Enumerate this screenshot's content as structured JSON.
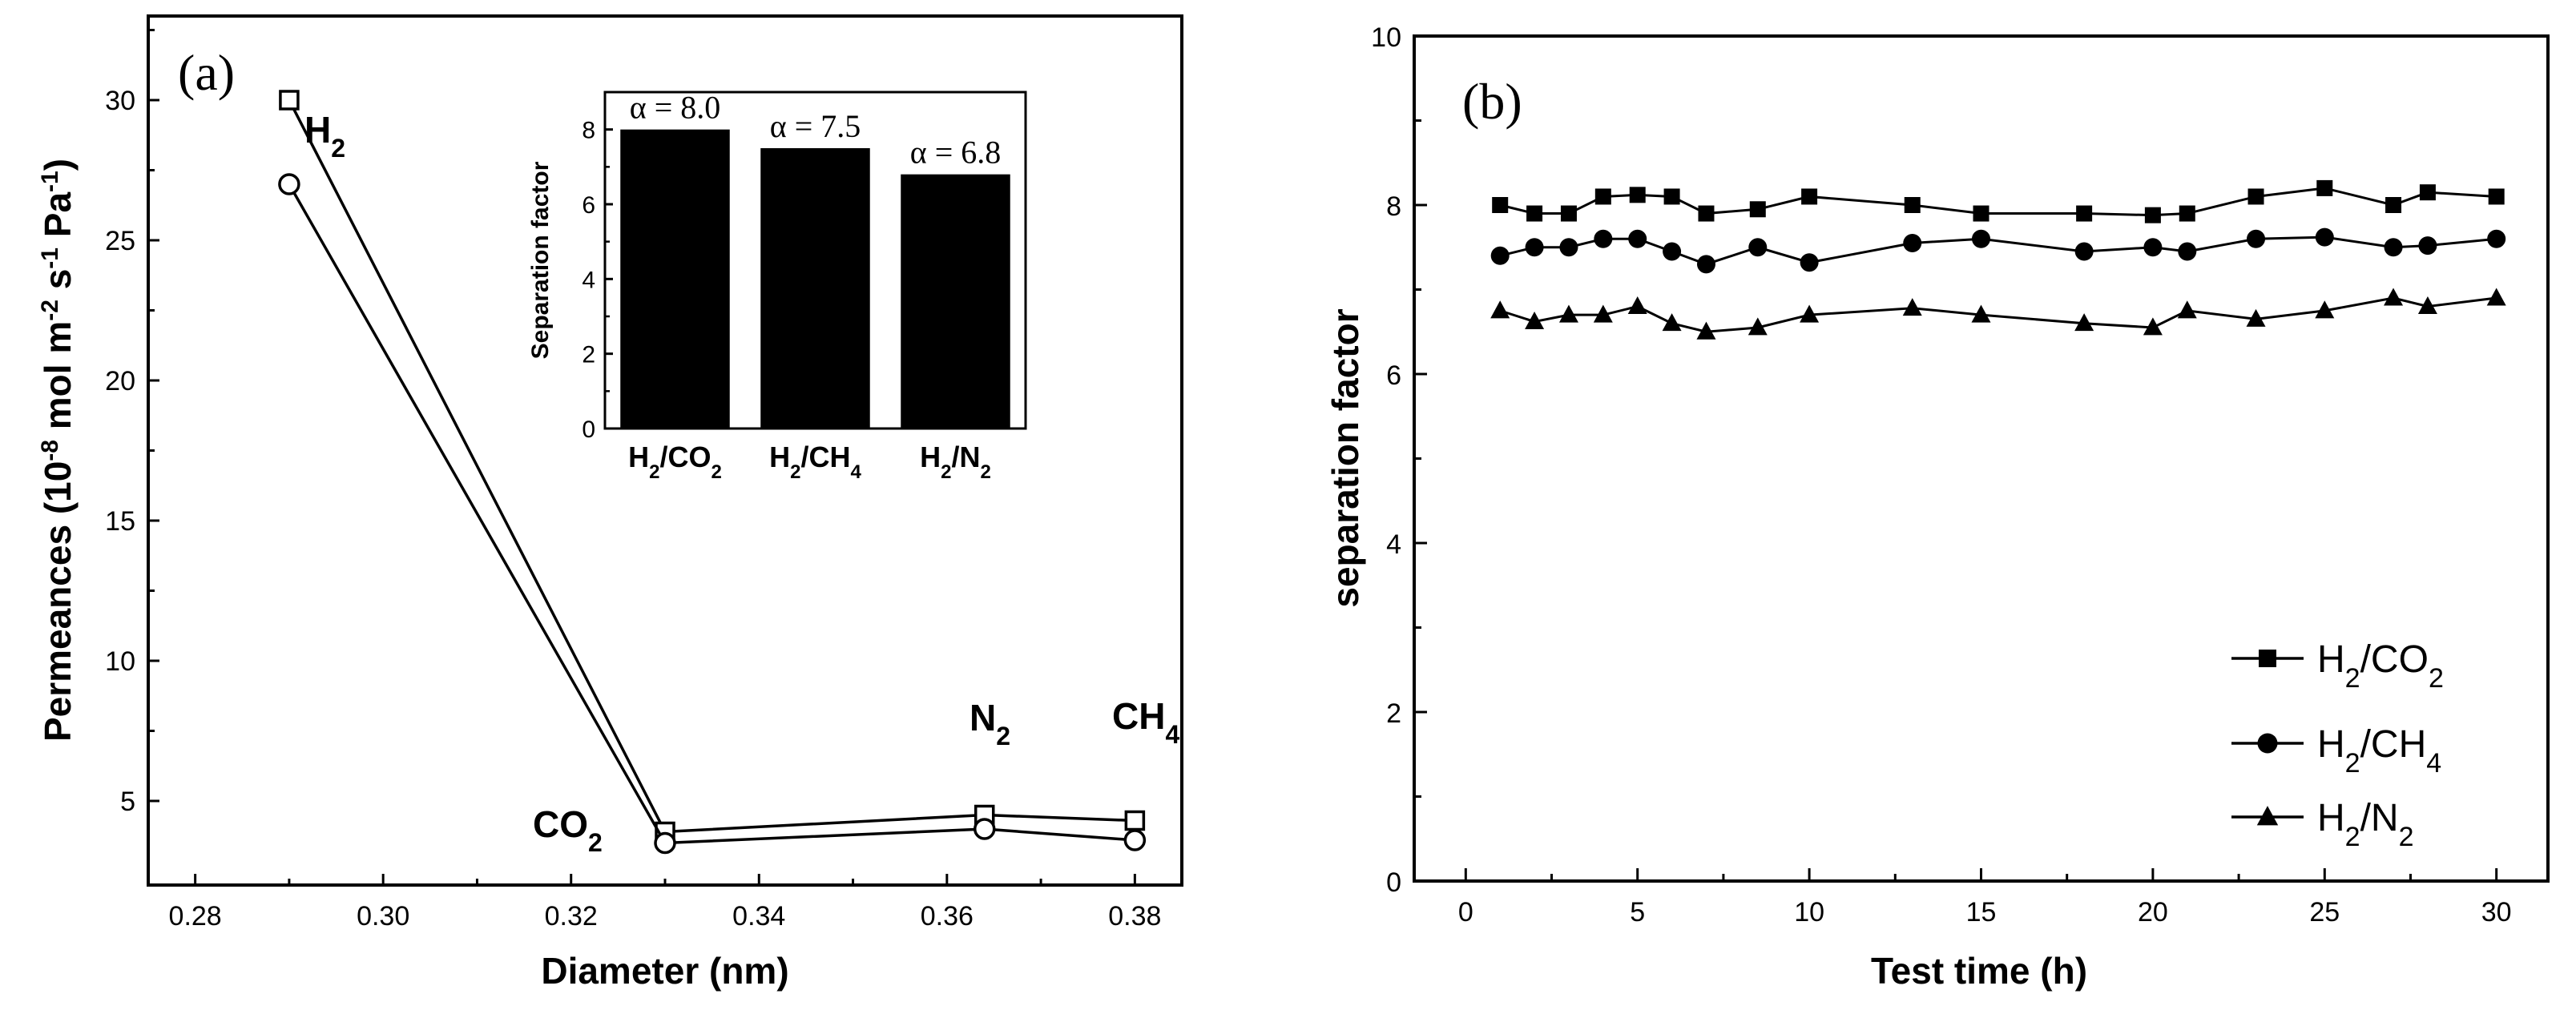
{
  "chart_data": [
    {
      "panel": "(a)",
      "type": "line",
      "xlabel": "Diameter (nm)",
      "ylabel": "Permeances (10^-8 mol m^-2 s^-1 Pa^-1)",
      "xlim": [
        0.275,
        0.385
      ],
      "ylim": [
        2,
        33
      ],
      "xticks": [
        0.28,
        0.3,
        0.32,
        0.34,
        0.36,
        0.38
      ],
      "xtick_labels": [
        "0.28",
        "0.30",
        "0.32",
        "0.34",
        "0.36",
        "0.38"
      ],
      "yticks": [
        5,
        10,
        15,
        20,
        25,
        30
      ],
      "ytick_labels": [
        "5",
        "10",
        "15",
        "20",
        "25",
        "30"
      ],
      "series": [
        {
          "name": "series-square",
          "marker": "open-square",
          "x": [
            0.29,
            0.33,
            0.364,
            0.38
          ],
          "values": [
            30.0,
            3.9,
            4.5,
            4.3
          ]
        },
        {
          "name": "series-circle",
          "marker": "open-circle",
          "x": [
            0.29,
            0.33,
            0.364,
            0.38
          ],
          "values": [
            27.0,
            3.5,
            4.0,
            3.6
          ]
        }
      ],
      "gas_labels": [
        {
          "base": "H",
          "sub": "2"
        },
        {
          "base": "CO",
          "sub": "2"
        },
        {
          "base": "N",
          "sub": "2"
        },
        {
          "base": "CH",
          "sub": "4"
        }
      ],
      "inset": {
        "type": "bar",
        "ylabel": "Separation factor",
        "ylim": [
          0,
          9
        ],
        "yticks": [
          0,
          2,
          4,
          6,
          8
        ],
        "ytick_labels": [
          "0",
          "2",
          "4",
          "6",
          "8"
        ],
        "categories": [
          {
            "a": "H",
            "a_sub": "2",
            "b": "/CO",
            "b_sub": "2"
          },
          {
            "a": "H",
            "a_sub": "2",
            "b": "/CH",
            "b_sub": "4"
          },
          {
            "a": "H",
            "a_sub": "2",
            "b": "/N",
            "b_sub": "2"
          }
        ],
        "values": [
          8.0,
          7.5,
          6.8
        ],
        "value_labels": [
          "α = 8.0",
          "α = 7.5",
          "α = 6.8"
        ]
      }
    },
    {
      "panel": "(b)",
      "type": "line",
      "xlabel": "Test time (h)",
      "ylabel": "separation factor",
      "xlim": [
        -1.5,
        31.5
      ],
      "ylim": [
        0,
        10
      ],
      "xticks": [
        0,
        5,
        10,
        15,
        20,
        25,
        30
      ],
      "xtick_labels": [
        "0",
        "5",
        "10",
        "15",
        "20",
        "25",
        "30"
      ],
      "yticks": [
        0,
        2,
        4,
        6,
        8,
        10
      ],
      "ytick_labels": [
        "0",
        "2",
        "4",
        "6",
        "8",
        "10"
      ],
      "legend_position": "bottom-right",
      "series": [
        {
          "name": "H2/CO2",
          "label_base": "H",
          "label_sub1": "2",
          "label_mid": "/CO",
          "label_sub2": "2",
          "marker": "square",
          "x": [
            1,
            2,
            3,
            4,
            5,
            6,
            7,
            8.5,
            10,
            13,
            15,
            18,
            20,
            21,
            23,
            25,
            27,
            28,
            30
          ],
          "values": [
            8.0,
            7.9,
            7.9,
            8.1,
            8.12,
            8.1,
            7.9,
            7.95,
            8.1,
            8.0,
            7.9,
            7.9,
            7.88,
            7.9,
            8.1,
            8.2,
            8.0,
            8.15,
            8.1
          ]
        },
        {
          "name": "H2/CH4",
          "label_base": "H",
          "label_sub1": "2",
          "label_mid": "/CH",
          "label_sub2": "4",
          "marker": "circle",
          "x": [
            1,
            2,
            3,
            4,
            5,
            6,
            7,
            8.5,
            10,
            13,
            15,
            18,
            20,
            21,
            23,
            25,
            27,
            28,
            30
          ],
          "values": [
            7.4,
            7.5,
            7.5,
            7.6,
            7.6,
            7.45,
            7.3,
            7.5,
            7.32,
            7.55,
            7.6,
            7.45,
            7.5,
            7.45,
            7.6,
            7.62,
            7.5,
            7.52,
            7.6
          ]
        },
        {
          "name": "H2/N2",
          "label_base": "H",
          "label_sub1": "2",
          "label_mid": "/N",
          "label_sub2": "2",
          "marker": "triangle",
          "x": [
            1,
            2,
            3,
            4,
            5,
            6,
            7,
            8.5,
            10,
            13,
            15,
            18,
            20,
            21,
            23,
            25,
            27,
            28,
            30
          ],
          "values": [
            6.75,
            6.62,
            6.7,
            6.7,
            6.8,
            6.6,
            6.5,
            6.55,
            6.7,
            6.78,
            6.7,
            6.6,
            6.55,
            6.75,
            6.65,
            6.75,
            6.9,
            6.8,
            6.9
          ]
        }
      ]
    }
  ]
}
